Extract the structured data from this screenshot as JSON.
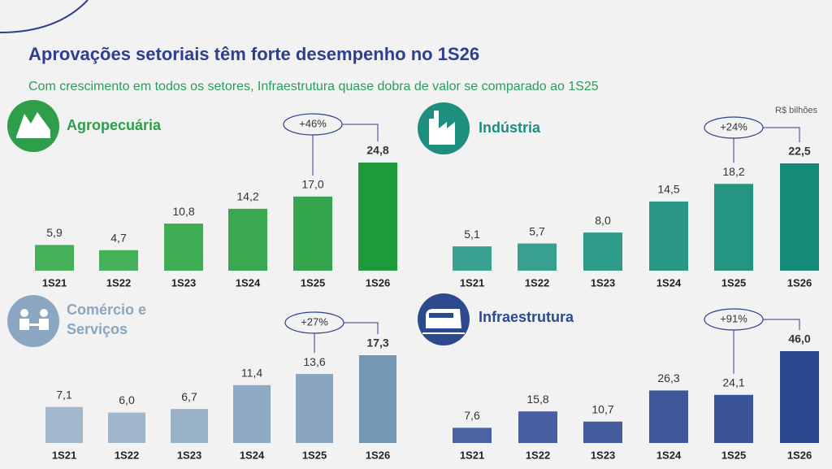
{
  "header": {
    "title": "Aprovações setoriais têm forte desempenho no 1S26",
    "subtitle": "Com crescimento em todos os setores, Infraestrutura quase dobra de valor se comparado ao 1S25",
    "unit": "R$ bilhões"
  },
  "chart_data": [
    {
      "type": "bar",
      "title": "Agropecuária",
      "title_color": "#2f9e4a",
      "categories": [
        "1S21",
        "1S22",
        "1S23",
        "1S24",
        "1S25",
        "1S26"
      ],
      "values": [
        5.9,
        4.7,
        10.8,
        14.2,
        17.0,
        24.8
      ],
      "value_labels": [
        "5,9",
        "4,7",
        "10,8",
        "14,2",
        "17,0",
        "24,8"
      ],
      "colors": [
        "#45b05a",
        "#45b05a",
        "#3fae55",
        "#3aa851",
        "#36a64e",
        "#1f9a3a"
      ],
      "annotation": "+46%"
    },
    {
      "type": "bar",
      "title": "Indústria",
      "title_color": "#1e8f7f",
      "categories": [
        "1S21",
        "1S22",
        "1S23",
        "1S24",
        "1S25",
        "1S26"
      ],
      "values": [
        5.1,
        5.7,
        8.0,
        14.5,
        18.2,
        22.5
      ],
      "value_labels": [
        "5,1",
        "5,7",
        "8,0",
        "14,5",
        "18,2",
        "22,5"
      ],
      "colors": [
        "#3aa291",
        "#38a08f",
        "#2f9c8a",
        "#2a9885",
        "#259582",
        "#168c78"
      ],
      "annotation": "+24%"
    },
    {
      "type": "bar",
      "title": "Comércio e Serviços",
      "title_color": "#8aa6c1",
      "categories": [
        "1S21",
        "1S22",
        "1S23",
        "1S24",
        "1S25",
        "1S26"
      ],
      "values": [
        7.1,
        6.0,
        6.7,
        11.4,
        13.6,
        17.3
      ],
      "value_labels": [
        "7,1",
        "6,0",
        "6,7",
        "11,4",
        "13,6",
        "17,3"
      ],
      "colors": [
        "#a2b8cd",
        "#9fb5ca",
        "#9ab2c8",
        "#8ea9c2",
        "#88a4bf",
        "#7398b6"
      ],
      "annotation": "+27%"
    },
    {
      "type": "bar",
      "title": "Infraestrutura",
      "title_color": "#2d4a8f",
      "categories": [
        "1S21",
        "1S22",
        "1S23",
        "1S24",
        "1S25",
        "1S26"
      ],
      "values": [
        7.6,
        15.8,
        10.7,
        26.3,
        24.1,
        46.0
      ],
      "value_labels": [
        "7,6",
        "15,8",
        "10,7",
        "26,3",
        "24,1",
        "46,0"
      ],
      "colors": [
        "#4a63a3",
        "#475fa0",
        "#445c9d",
        "#3f579a",
        "#3b5397",
        "#2c4690"
      ],
      "annotation": "+91%"
    }
  ]
}
